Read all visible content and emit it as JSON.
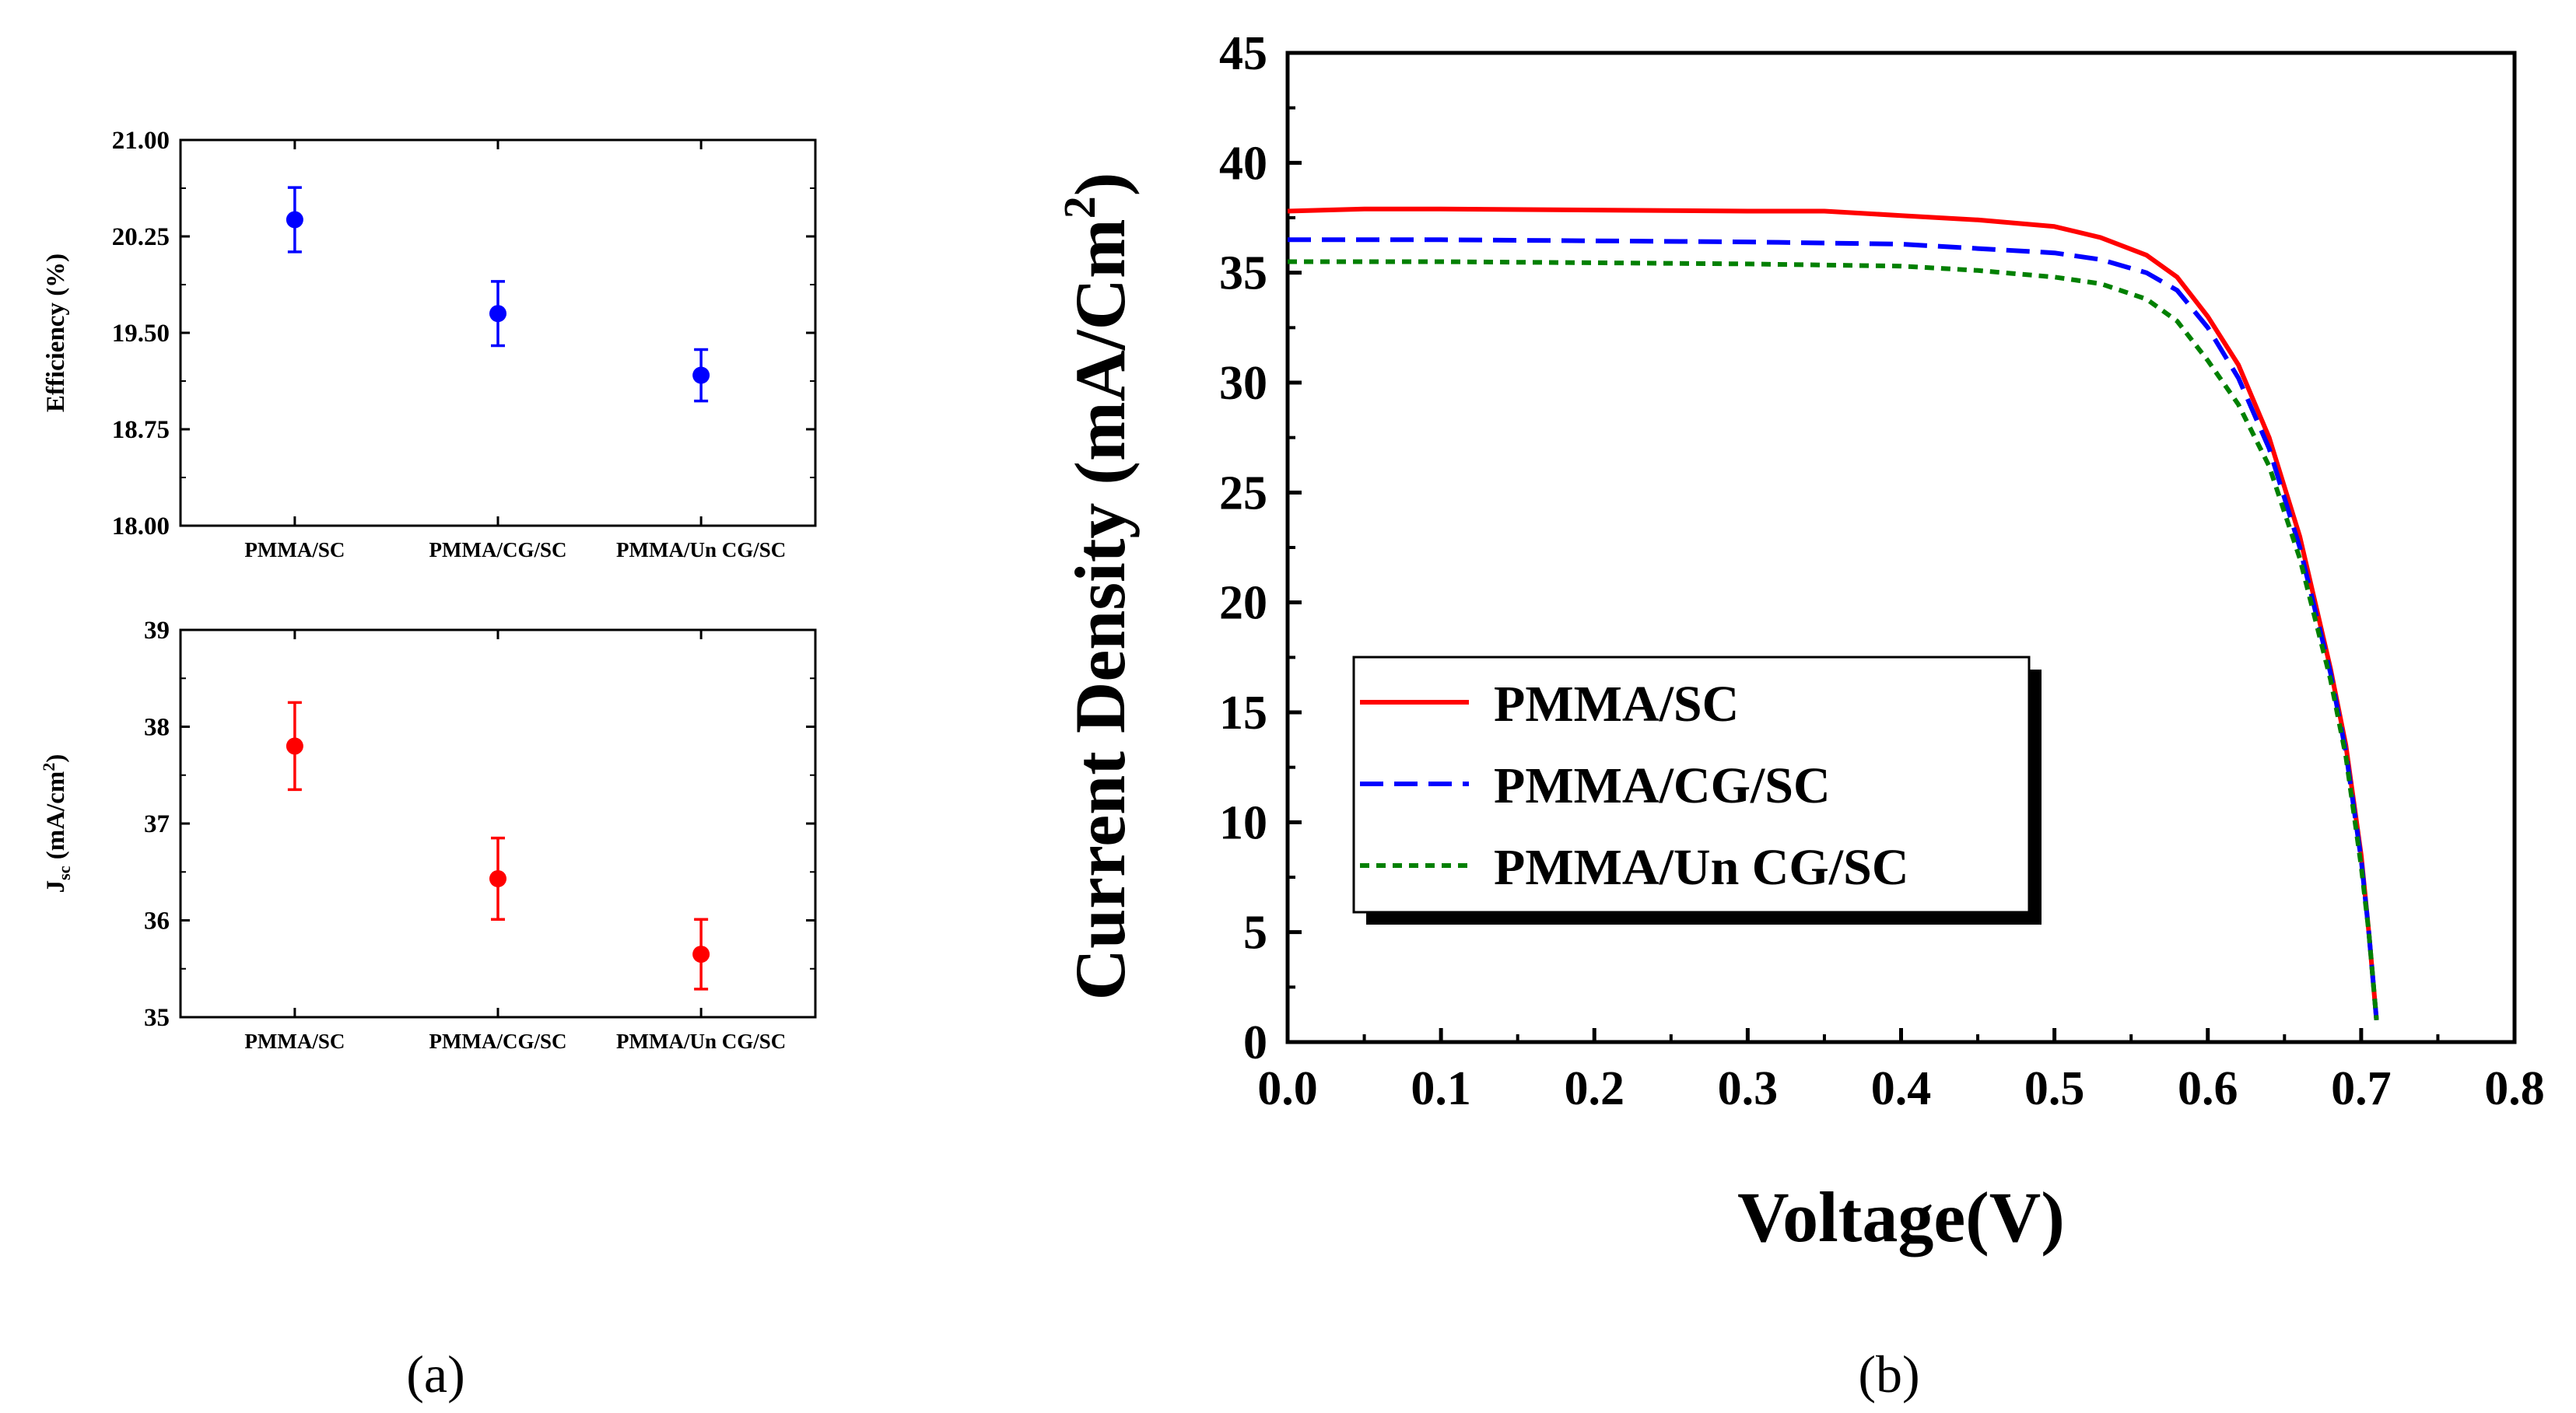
{
  "chart_data": [
    {
      "id": "efficiency",
      "type": "scatter",
      "title": "",
      "xlabel": "",
      "ylabel": "Efficiency (%)",
      "categories": [
        "PMMA/SC",
        "PMMA/CG/SC",
        "PMMA/Un CG/SC"
      ],
      "yticks": [
        "18.00",
        "18.75",
        "19.50",
        "20.25",
        "21.00"
      ],
      "ylim": [
        18.0,
        21.0
      ],
      "color": "#0000ff",
      "series": [
        {
          "values": [
            20.38,
            19.65,
            19.17
          ],
          "errors": [
            0.25,
            0.25,
            0.2
          ]
        }
      ],
      "grid": false
    },
    {
      "id": "jsc",
      "type": "scatter",
      "title": "",
      "xlabel": "",
      "ylabel_main": "J",
      "ylabel_sub": "sc",
      "ylabel_rest": " (mA/cm",
      "ylabel_sup": "2",
      "ylabel_end": ")",
      "categories": [
        "PMMA/SC",
        "PMMA/CG/SC",
        "PMMA/Un CG/SC"
      ],
      "yticks": [
        "35",
        "36",
        "37",
        "38",
        "39"
      ],
      "ylim": [
        35,
        39
      ],
      "color": "#ff0000",
      "series": [
        {
          "values": [
            37.8,
            36.43,
            35.65
          ],
          "errors": [
            0.45,
            0.42,
            0.36
          ]
        }
      ],
      "grid": false
    },
    {
      "id": "jv",
      "type": "line",
      "title": "",
      "xlabel": "Voltage(V)",
      "ylabel": "Current Density (mA/Cm",
      "ylabel_sup": "2",
      "ylabel_end": ")",
      "xlim": [
        0.0,
        0.8
      ],
      "ylim": [
        0,
        45
      ],
      "xticks": [
        "0.0",
        "0.1",
        "0.2",
        "0.3",
        "0.4",
        "0.5",
        "0.6",
        "0.7",
        "0.8"
      ],
      "yticks": [
        "0",
        "5",
        "10",
        "15",
        "20",
        "25",
        "30",
        "35",
        "40",
        "45"
      ],
      "legend_position": "lower-left",
      "grid": false,
      "series": [
        {
          "name": "PMMA/SC",
          "color": "#ff0000",
          "dash": "solid",
          "x": [
            0.0,
            0.05,
            0.1,
            0.2,
            0.3,
            0.35,
            0.4,
            0.45,
            0.5,
            0.53,
            0.56,
            0.58,
            0.6,
            0.62,
            0.64,
            0.66,
            0.68,
            0.69,
            0.7,
            0.705,
            0.71
          ],
          "y": [
            37.8,
            37.9,
            37.9,
            37.85,
            37.8,
            37.8,
            37.6,
            37.4,
            37.1,
            36.6,
            35.8,
            34.8,
            33.0,
            30.8,
            27.5,
            23.0,
            17.0,
            13.5,
            8.5,
            5.0,
            1.0
          ]
        },
        {
          "name": "PMMA/CG/SC",
          "color": "#0000ff",
          "dash": "dashed",
          "x": [
            0.0,
            0.05,
            0.1,
            0.2,
            0.3,
            0.35,
            0.4,
            0.45,
            0.5,
            0.53,
            0.56,
            0.58,
            0.6,
            0.62,
            0.64,
            0.66,
            0.68,
            0.69,
            0.7,
            0.705,
            0.71
          ],
          "y": [
            36.5,
            36.5,
            36.5,
            36.45,
            36.4,
            36.35,
            36.3,
            36.1,
            35.9,
            35.6,
            35.0,
            34.2,
            32.5,
            30.2,
            27.0,
            22.5,
            16.8,
            13.2,
            8.3,
            5.0,
            1.0
          ]
        },
        {
          "name": "PMMA/Un CG/SC",
          "color": "#008000",
          "dash": "dotted",
          "x": [
            0.0,
            0.05,
            0.1,
            0.2,
            0.3,
            0.35,
            0.4,
            0.45,
            0.5,
            0.53,
            0.56,
            0.58,
            0.6,
            0.62,
            0.64,
            0.66,
            0.68,
            0.69,
            0.7,
            0.705,
            0.71
          ],
          "y": [
            35.5,
            35.5,
            35.5,
            35.45,
            35.4,
            35.35,
            35.3,
            35.1,
            34.8,
            34.5,
            33.8,
            32.8,
            31.0,
            29.0,
            26.2,
            22.0,
            16.5,
            13.0,
            8.0,
            5.0,
            1.0
          ]
        }
      ]
    }
  ],
  "panel_labels": [
    "(a)",
    "(b)"
  ]
}
